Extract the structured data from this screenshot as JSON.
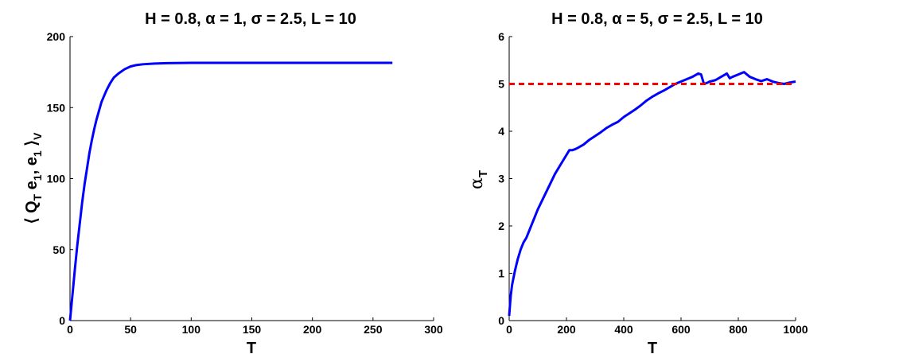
{
  "chart_data": [
    {
      "type": "line",
      "title": "H = 0.8, α = 1, σ = 2.5, L = 10",
      "xlabel": "T",
      "ylabel": "⟨ Q_T e_1, e_1 ⟩_V",
      "xlim": [
        0,
        300
      ],
      "ylim": [
        0,
        200
      ],
      "xticks": [
        0,
        50,
        100,
        150,
        200,
        250,
        300
      ],
      "yticks": [
        0,
        50,
        100,
        150,
        200
      ],
      "grid": false,
      "series": [
        {
          "color": "#0000ff",
          "style": "solid",
          "x": [
            0,
            2,
            4,
            6,
            8,
            10,
            12,
            14,
            16,
            18,
            20,
            22,
            24,
            26,
            28,
            30,
            33,
            36,
            40,
            45,
            50,
            55,
            60,
            70,
            80,
            100,
            150,
            200,
            266
          ],
          "values": [
            0,
            18,
            36,
            53,
            68,
            83,
            96,
            107,
            118,
            127,
            135,
            142,
            148,
            154,
            158,
            162,
            167,
            171,
            174,
            177,
            179,
            180,
            180.5,
            181,
            181.3,
            181.5,
            181.5,
            181.5,
            181.5
          ]
        }
      ]
    },
    {
      "type": "line",
      "title": "H = 0.8, α = 5, σ = 2.5, L = 10",
      "xlabel": "T",
      "ylabel": "α_T",
      "xlim": [
        0,
        1000
      ],
      "ylim": [
        0,
        6
      ],
      "xticks": [
        0,
        200,
        400,
        600,
        800,
        1000
      ],
      "yticks": [
        0,
        1,
        2,
        3,
        4,
        5,
        6
      ],
      "grid": false,
      "series": [
        {
          "color": "#0000ff",
          "style": "solid",
          "x": [
            0,
            5,
            10,
            20,
            30,
            40,
            50,
            60,
            80,
            100,
            120,
            140,
            160,
            180,
            200,
            210,
            220,
            230,
            240,
            260,
            280,
            300,
            320,
            340,
            360,
            380,
            400,
            420,
            440,
            460,
            480,
            500,
            520,
            540,
            560,
            580,
            600,
            620,
            640,
            660,
            670,
            680,
            690,
            700,
            720,
            740,
            760,
            770,
            780,
            800,
            820,
            840,
            860,
            880,
            900,
            920,
            940,
            960,
            980,
            1000
          ],
          "values": [
            0.1,
            0.5,
            0.75,
            1.05,
            1.3,
            1.5,
            1.65,
            1.75,
            2.05,
            2.35,
            2.6,
            2.85,
            3.1,
            3.3,
            3.5,
            3.6,
            3.6,
            3.62,
            3.65,
            3.72,
            3.82,
            3.9,
            3.98,
            4.07,
            4.14,
            4.2,
            4.3,
            4.38,
            4.46,
            4.55,
            4.65,
            4.73,
            4.8,
            4.86,
            4.93,
            5.0,
            5.05,
            5.1,
            5.15,
            5.22,
            5.2,
            5.0,
            5.02,
            5.05,
            5.08,
            5.15,
            5.22,
            5.12,
            5.15,
            5.2,
            5.25,
            5.15,
            5.1,
            5.06,
            5.1,
            5.05,
            5.02,
            5.0,
            5.03,
            5.05
          ]
        },
        {
          "color": "#ff0000",
          "style": "dashed",
          "x": [
            0,
            1000
          ],
          "values": [
            5,
            5
          ]
        }
      ]
    }
  ]
}
